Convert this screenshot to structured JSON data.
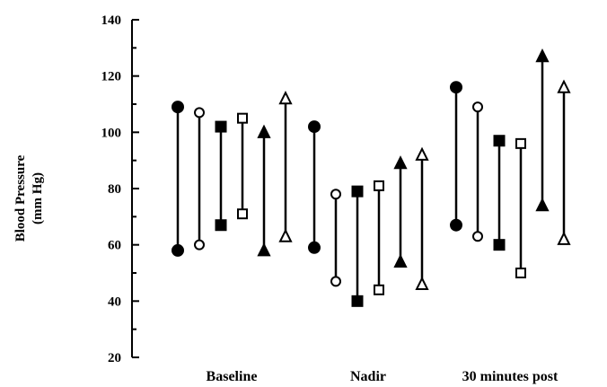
{
  "chart_data": {
    "type": "range",
    "ylabel_lines": [
      "Blood Pressure",
      "(mm Hg)"
    ],
    "xlabel": "",
    "categories": [
      "Baseline",
      "Nadir",
      "30 minutes post"
    ],
    "ylim": [
      20,
      140
    ],
    "yticks": [
      20,
      40,
      60,
      80,
      100,
      120,
      140
    ],
    "grid": false,
    "legend": "none",
    "series": [
      {
        "marker": "filled-circle",
        "ranges": [
          [
            58,
            109
          ],
          [
            59,
            102
          ],
          [
            67,
            116
          ]
        ]
      },
      {
        "marker": "open-circle",
        "ranges": [
          [
            60,
            107
          ],
          [
            47,
            78
          ],
          [
            63,
            109
          ]
        ]
      },
      {
        "marker": "filled-square",
        "ranges": [
          [
            67,
            102
          ],
          [
            40,
            79
          ],
          [
            60,
            97
          ]
        ]
      },
      {
        "marker": "open-square",
        "ranges": [
          [
            71,
            105
          ],
          [
            44,
            81
          ],
          [
            50,
            96
          ]
        ]
      },
      {
        "marker": "filled-triangle",
        "ranges": [
          [
            58,
            100
          ],
          [
            54,
            89
          ],
          [
            74,
            127
          ]
        ]
      },
      {
        "marker": "open-triangle",
        "ranges": [
          [
            63,
            112
          ],
          [
            46,
            92
          ],
          [
            62,
            116
          ]
        ]
      }
    ]
  }
}
